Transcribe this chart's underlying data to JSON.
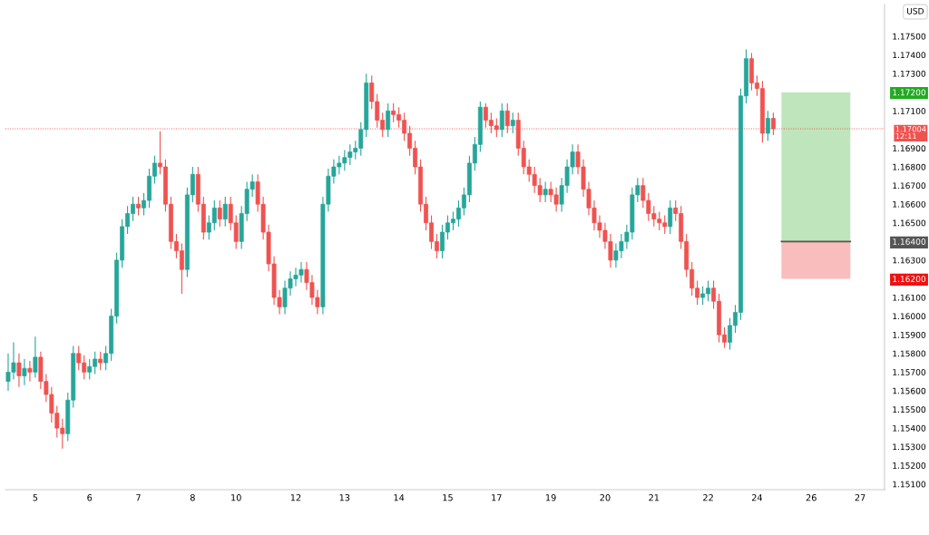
{
  "chart_data": {
    "type": "candlestick",
    "ylabel": "USD",
    "categories": [
      null,
      null,
      null,
      null,
      null,
      "5",
      null,
      null,
      null,
      null,
      null,
      null,
      null,
      null,
      null,
      "6",
      null,
      null,
      null,
      null,
      null,
      null,
      null,
      null,
      "7",
      null,
      null,
      null,
      null,
      null,
      null,
      null,
      null,
      null,
      "8",
      null,
      null,
      null,
      null,
      null,
      null,
      null,
      "10",
      null,
      null,
      null,
      null,
      null,
      null,
      null,
      null,
      null,
      null,
      "12",
      null,
      null,
      null,
      null,
      null,
      null,
      null,
      null,
      "13",
      null,
      null,
      null,
      null,
      null,
      null,
      null,
      null,
      null,
      "14",
      null,
      null,
      null,
      null,
      null,
      null,
      null,
      null,
      "15",
      null,
      null,
      null,
      null,
      null,
      null,
      null,
      null,
      "17",
      null,
      null,
      null,
      null,
      null,
      null,
      null,
      null,
      null,
      "19",
      null,
      null,
      null,
      null,
      null,
      null,
      null,
      null,
      null,
      "20",
      null,
      null,
      null,
      null,
      null,
      null,
      null,
      null,
      "21",
      null,
      null,
      null,
      null,
      null,
      null,
      null,
      null,
      null,
      "22",
      null,
      null,
      null,
      null,
      null,
      null,
      null,
      null,
      "24",
      null,
      null,
      null,
      null,
      null,
      null,
      null,
      null,
      null,
      "26",
      null,
      null,
      null,
      null,
      null,
      null,
      null,
      null,
      "27",
      null,
      null,
      null,
      null
    ],
    "ohlc": [
      [
        1.1565,
        1.158,
        1.156,
        1.157
      ],
      [
        1.157,
        1.1586,
        1.1566,
        1.1575
      ],
      [
        1.1575,
        1.158,
        1.1562,
        1.1568
      ],
      [
        1.1568,
        1.1577,
        1.1563,
        1.1572
      ],
      [
        1.1572,
        1.1576,
        1.1565,
        1.157
      ],
      [
        1.157,
        1.1589,
        1.1567,
        1.1578
      ],
      [
        1.1578,
        1.1581,
        1.1561,
        1.1565
      ],
      [
        1.1565,
        1.1569,
        1.1554,
        1.1558
      ],
      [
        1.1558,
        1.1562,
        1.1543,
        1.1548
      ],
      [
        1.1548,
        1.1552,
        1.1535,
        1.154
      ],
      [
        1.154,
        1.1545,
        1.1529,
        1.1537
      ],
      [
        1.1537,
        1.1559,
        1.1533,
        1.1555
      ],
      [
        1.1555,
        1.1584,
        1.1551,
        1.158
      ],
      [
        1.158,
        1.1584,
        1.1571,
        1.1575
      ],
      [
        1.1575,
        1.1579,
        1.1566,
        1.157
      ],
      [
        1.157,
        1.1577,
        1.1566,
        1.1573
      ],
      [
        1.1573,
        1.1581,
        1.1569,
        1.1577
      ],
      [
        1.1577,
        1.1581,
        1.1571,
        1.1575
      ],
      [
        1.1575,
        1.1584,
        1.1571,
        1.158
      ],
      [
        1.158,
        1.1604,
        1.1576,
        1.16
      ],
      [
        1.16,
        1.1634,
        1.1596,
        1.163
      ],
      [
        1.163,
        1.1652,
        1.1626,
        1.1648
      ],
      [
        1.1648,
        1.1659,
        1.1644,
        1.1655
      ],
      [
        1.1655,
        1.1664,
        1.1651,
        1.166
      ],
      [
        1.166,
        1.1664,
        1.1654,
        1.1658
      ],
      [
        1.1658,
        1.1666,
        1.1654,
        1.1662
      ],
      [
        1.1662,
        1.1679,
        1.1658,
        1.1675
      ],
      [
        1.1675,
        1.1686,
        1.1671,
        1.1682
      ],
      [
        1.1682,
        1.1699,
        1.1676,
        1.168
      ],
      [
        1.168,
        1.1684,
        1.1656,
        1.166
      ],
      [
        1.166,
        1.1664,
        1.1636,
        1.164
      ],
      [
        1.164,
        1.1644,
        1.1631,
        1.1635
      ],
      [
        1.1635,
        1.1639,
        1.1612,
        1.1625
      ],
      [
        1.1625,
        1.1669,
        1.1621,
        1.1665
      ],
      [
        1.1665,
        1.168,
        1.1661,
        1.1676
      ],
      [
        1.1676,
        1.168,
        1.1656,
        1.166
      ],
      [
        1.166,
        1.1664,
        1.1641,
        1.1645
      ],
      [
        1.1645,
        1.1654,
        1.1641,
        1.165
      ],
      [
        1.165,
        1.1662,
        1.1646,
        1.1658
      ],
      [
        1.1658,
        1.1662,
        1.1648,
        1.1652
      ],
      [
        1.1652,
        1.1664,
        1.1648,
        1.166
      ],
      [
        1.166,
        1.1664,
        1.1646,
        1.165
      ],
      [
        1.165,
        1.1654,
        1.1636,
        1.164
      ],
      [
        1.164,
        1.1659,
        1.1636,
        1.1655
      ],
      [
        1.1655,
        1.1672,
        1.1651,
        1.1668
      ],
      [
        1.1668,
        1.1676,
        1.1664,
        1.1672
      ],
      [
        1.1672,
        1.1676,
        1.1656,
        1.166
      ],
      [
        1.166,
        1.1664,
        1.1641,
        1.1645
      ],
      [
        1.1645,
        1.1649,
        1.1624,
        1.1628
      ],
      [
        1.1628,
        1.1632,
        1.1606,
        1.161
      ],
      [
        1.161,
        1.1614,
        1.1601,
        1.1605
      ],
      [
        1.1605,
        1.1619,
        1.1601,
        1.1615
      ],
      [
        1.1615,
        1.1624,
        1.1611,
        1.162
      ],
      [
        1.162,
        1.1626,
        1.1616,
        1.1622
      ],
      [
        1.1622,
        1.1629,
        1.1618,
        1.1625
      ],
      [
        1.1625,
        1.1629,
        1.1614,
        1.1618
      ],
      [
        1.1618,
        1.1622,
        1.1606,
        1.161
      ],
      [
        1.161,
        1.1614,
        1.1601,
        1.1605
      ],
      [
        1.1605,
        1.1664,
        1.1601,
        1.166
      ],
      [
        1.166,
        1.1679,
        1.1656,
        1.1675
      ],
      [
        1.1675,
        1.1684,
        1.1671,
        1.168
      ],
      [
        1.168,
        1.1686,
        1.1676,
        1.1682
      ],
      [
        1.1682,
        1.1689,
        1.1678,
        1.1685
      ],
      [
        1.1685,
        1.1692,
        1.1681,
        1.1688
      ],
      [
        1.1688,
        1.1694,
        1.1684,
        1.169
      ],
      [
        1.169,
        1.1704,
        1.1686,
        1.17
      ],
      [
        1.17,
        1.173,
        1.1696,
        1.1725
      ],
      [
        1.1725,
        1.1729,
        1.1711,
        1.1715
      ],
      [
        1.1715,
        1.1719,
        1.1701,
        1.1705
      ],
      [
        1.1705,
        1.1709,
        1.1696,
        1.17
      ],
      [
        1.17,
        1.1714,
        1.1696,
        1.171
      ],
      [
        1.171,
        1.1714,
        1.1704,
        1.1708
      ],
      [
        1.1708,
        1.1712,
        1.1701,
        1.1705
      ],
      [
        1.1705,
        1.1709,
        1.1694,
        1.1698
      ],
      [
        1.1698,
        1.1702,
        1.1686,
        1.169
      ],
      [
        1.169,
        1.1694,
        1.1676,
        1.168
      ],
      [
        1.168,
        1.1684,
        1.1656,
        1.166
      ],
      [
        1.166,
        1.1664,
        1.1646,
        1.165
      ],
      [
        1.165,
        1.1654,
        1.1636,
        1.164
      ],
      [
        1.164,
        1.1644,
        1.1631,
        1.1635
      ],
      [
        1.1635,
        1.1649,
        1.1631,
        1.1645
      ],
      [
        1.1645,
        1.1654,
        1.1641,
        1.165
      ],
      [
        1.165,
        1.1656,
        1.1646,
        1.1652
      ],
      [
        1.1652,
        1.1662,
        1.1648,
        1.1658
      ],
      [
        1.1658,
        1.1669,
        1.1654,
        1.1665
      ],
      [
        1.1665,
        1.1686,
        1.1661,
        1.1682
      ],
      [
        1.1682,
        1.1696,
        1.1678,
        1.1692
      ],
      [
        1.1692,
        1.1715,
        1.1688,
        1.1712
      ],
      [
        1.1712,
        1.1714,
        1.1701,
        1.1705
      ],
      [
        1.1705,
        1.1709,
        1.1698,
        1.1702
      ],
      [
        1.1702,
        1.1706,
        1.1696,
        1.17
      ],
      [
        1.17,
        1.1714,
        1.1696,
        1.171
      ],
      [
        1.171,
        1.1714,
        1.1698,
        1.1702
      ],
      [
        1.1702,
        1.1709,
        1.1698,
        1.1705
      ],
      [
        1.1705,
        1.1709,
        1.1686,
        1.169
      ],
      [
        1.169,
        1.1694,
        1.1676,
        1.168
      ],
      [
        1.168,
        1.1684,
        1.1672,
        1.1676
      ],
      [
        1.1676,
        1.168,
        1.1666,
        1.167
      ],
      [
        1.167,
        1.1674,
        1.1661,
        1.1665
      ],
      [
        1.1665,
        1.1672,
        1.1661,
        1.1668
      ],
      [
        1.1668,
        1.1672,
        1.1661,
        1.1665
      ],
      [
        1.1665,
        1.1669,
        1.1656,
        1.166
      ],
      [
        1.166,
        1.1674,
        1.1656,
        1.167
      ],
      [
        1.167,
        1.1684,
        1.1666,
        1.168
      ],
      [
        1.168,
        1.1692,
        1.1676,
        1.1688
      ],
      [
        1.1688,
        1.1692,
        1.1676,
        1.168
      ],
      [
        1.168,
        1.1684,
        1.1664,
        1.1668
      ],
      [
        1.1668,
        1.1672,
        1.1654,
        1.1658
      ],
      [
        1.1658,
        1.1662,
        1.1646,
        1.165
      ],
      [
        1.165,
        1.1654,
        1.1642,
        1.1646
      ],
      [
        1.1646,
        1.165,
        1.1636,
        1.164
      ],
      [
        1.164,
        1.1644,
        1.1626,
        1.163
      ],
      [
        1.163,
        1.1639,
        1.1626,
        1.1635
      ],
      [
        1.1635,
        1.1644,
        1.1631,
        1.164
      ],
      [
        1.164,
        1.1649,
        1.1636,
        1.1645
      ],
      [
        1.1645,
        1.1669,
        1.1641,
        1.1665
      ],
      [
        1.1665,
        1.1674,
        1.1661,
        1.167
      ],
      [
        1.167,
        1.1674,
        1.1658,
        1.1662
      ],
      [
        1.1662,
        1.1666,
        1.1651,
        1.1655
      ],
      [
        1.1655,
        1.1659,
        1.1648,
        1.1652
      ],
      [
        1.1652,
        1.1656,
        1.1646,
        1.165
      ],
      [
        1.165,
        1.1654,
        1.1644,
        1.1648
      ],
      [
        1.1648,
        1.1662,
        1.1644,
        1.1658
      ],
      [
        1.1658,
        1.1662,
        1.1651,
        1.1655
      ],
      [
        1.1655,
        1.1659,
        1.1636,
        1.164
      ],
      [
        1.164,
        1.1644,
        1.1621,
        1.1625
      ],
      [
        1.1625,
        1.1629,
        1.1611,
        1.1615
      ],
      [
        1.1615,
        1.1619,
        1.1606,
        1.161
      ],
      [
        1.161,
        1.1616,
        1.1606,
        1.1612
      ],
      [
        1.1612,
        1.1619,
        1.1608,
        1.1615
      ],
      [
        1.1615,
        1.1619,
        1.1604,
        1.1608
      ],
      [
        1.1608,
        1.1612,
        1.1586,
        1.159
      ],
      [
        1.159,
        1.1594,
        1.1583,
        1.1586
      ],
      [
        1.1586,
        1.1599,
        1.1582,
        1.1595
      ],
      [
        1.1595,
        1.1606,
        1.1591,
        1.1602
      ],
      [
        1.1602,
        1.1722,
        1.1598,
        1.1718
      ],
      [
        1.1718,
        1.1743,
        1.1714,
        1.1738
      ],
      [
        1.1738,
        1.1741,
        1.1721,
        1.1725
      ],
      [
        1.1725,
        1.1729,
        1.1718,
        1.1722
      ],
      [
        1.1722,
        1.1726,
        1.1693,
        1.1698
      ],
      [
        1.1698,
        1.171,
        1.1694,
        1.1706
      ],
      [
        1.1706,
        1.1709,
        1.1697,
        1.17004
      ],
      null,
      null,
      null,
      null,
      null,
      null,
      null,
      null,
      null,
      null,
      null,
      null,
      null,
      null,
      null,
      null,
      null,
      null,
      null,
      null
    ],
    "colors": [
      "#26a69a",
      "#26a69a",
      "#ef5350",
      "#26a69a",
      "#ef5350",
      "#26a69a",
      "#ef5350",
      "#ef5350",
      "#ef5350",
      "#ef5350",
      "#ef5350",
      "#26a69a",
      "#26a69a",
      "#ef5350",
      "#ef5350",
      "#26a69a",
      "#26a69a",
      "#ef5350",
      "#26a69a",
      "#26a69a",
      "#26a69a",
      "#26a69a",
      "#26a69a",
      "#26a69a",
      "#ef5350",
      "#26a69a",
      "#26a69a",
      "#26a69a",
      "#ef5350",
      "#ef5350",
      "#ef5350",
      "#ef5350",
      "#ef5350",
      "#26a69a",
      "#26a69a",
      "#ef5350",
      "#ef5350",
      "#26a69a",
      "#26a69a",
      "#ef5350",
      "#26a69a",
      "#ef5350",
      "#ef5350",
      "#26a69a",
      "#26a69a",
      "#26a69a",
      "#ef5350",
      "#ef5350",
      "#ef5350",
      "#ef5350",
      "#ef5350",
      "#26a69a",
      "#26a69a",
      "#26a69a",
      "#26a69a",
      "#ef5350",
      "#ef5350",
      "#ef5350",
      "#26a69a",
      "#26a69a",
      "#26a69a",
      "#26a69a",
      "#26a69a",
      "#26a69a",
      "#26a69a",
      "#26a69a",
      "#26a69a",
      "#ef5350",
      "#ef5350",
      "#ef5350",
      "#26a69a",
      "#ef5350",
      "#ef5350",
      "#ef5350",
      "#ef5350",
      "#ef5350",
      "#ef5350",
      "#ef5350",
      "#ef5350",
      "#ef5350",
      "#26a69a",
      "#26a69a",
      "#26a69a",
      "#26a69a",
      "#26a69a",
      "#26a69a",
      "#26a69a",
      "#26a69a",
      "#ef5350",
      "#ef5350",
      "#ef5350",
      "#26a69a",
      "#ef5350",
      "#26a69a",
      "#ef5350",
      "#ef5350",
      "#ef5350",
      "#ef5350",
      "#ef5350",
      "#26a69a",
      "#ef5350",
      "#ef5350",
      "#26a69a",
      "#26a69a",
      "#26a69a",
      "#ef5350",
      "#ef5350",
      "#ef5350",
      "#ef5350",
      "#ef5350",
      "#ef5350",
      "#ef5350",
      "#26a69a",
      "#26a69a",
      "#26a69a",
      "#26a69a",
      "#26a69a",
      "#ef5350",
      "#ef5350",
      "#ef5350",
      "#ef5350",
      "#ef5350",
      "#26a69a",
      "#ef5350",
      "#ef5350",
      "#ef5350",
      "#ef5350",
      "#ef5350",
      "#26a69a",
      "#26a69a",
      "#ef5350",
      "#ef5350",
      "#ef5350",
      "#26a69a",
      "#26a69a",
      "#26a69a",
      "#26a69a",
      "#ef5350",
      "#ef5350",
      "#ef5350",
      "#26a69a",
      "#ef5350",
      null,
      null,
      null,
      null,
      null,
      null,
      null,
      null,
      null,
      null,
      null,
      null,
      null,
      null,
      null,
      null,
      null,
      null,
      null,
      null
    ],
    "ylim": [
      1.1507,
      1.1767
    ],
    "yticks": [
      {
        "value": 1.151,
        "label": "1.15100"
      },
      {
        "value": 1.152,
        "label": "1.15200"
      },
      {
        "value": 1.153,
        "label": "1.15300"
      },
      {
        "value": 1.154,
        "label": "1.15400"
      },
      {
        "value": 1.155,
        "label": "1.15500"
      },
      {
        "value": 1.156,
        "label": "1.15600"
      },
      {
        "value": 1.157,
        "label": "1.15700"
      },
      {
        "value": 1.158,
        "label": "1.15800"
      },
      {
        "value": 1.159,
        "label": "1.15900"
      },
      {
        "value": 1.16,
        "label": "1.16000"
      },
      {
        "value": 1.161,
        "label": "1.16100"
      },
      {
        "value": 1.162,
        "label": "1.16200"
      },
      {
        "value": 1.163,
        "label": "1.16300"
      },
      {
        "value": 1.164,
        "label": "1.16400"
      },
      {
        "value": 1.165,
        "label": "1.16500"
      },
      {
        "value": 1.166,
        "label": "1.16600"
      },
      {
        "value": 1.167,
        "label": "1.16700"
      },
      {
        "value": 1.168,
        "label": "1.16800"
      },
      {
        "value": 1.169,
        "label": "1.16900"
      },
      {
        "value": 1.171,
        "label": "1.17100"
      },
      {
        "value": 1.172,
        "label": "1.17200"
      },
      {
        "value": 1.173,
        "label": "1.17300"
      },
      {
        "value": 1.174,
        "label": "1.17400"
      },
      {
        "value": 1.175,
        "label": "1.17500"
      }
    ],
    "ref_lines": [
      {
        "axis": "y",
        "value": 1.17004,
        "label": "1.17004\n12:11",
        "color": "#ef5350",
        "line_style": "dotted"
      }
    ],
    "grid": false,
    "legend": false
  }
}
